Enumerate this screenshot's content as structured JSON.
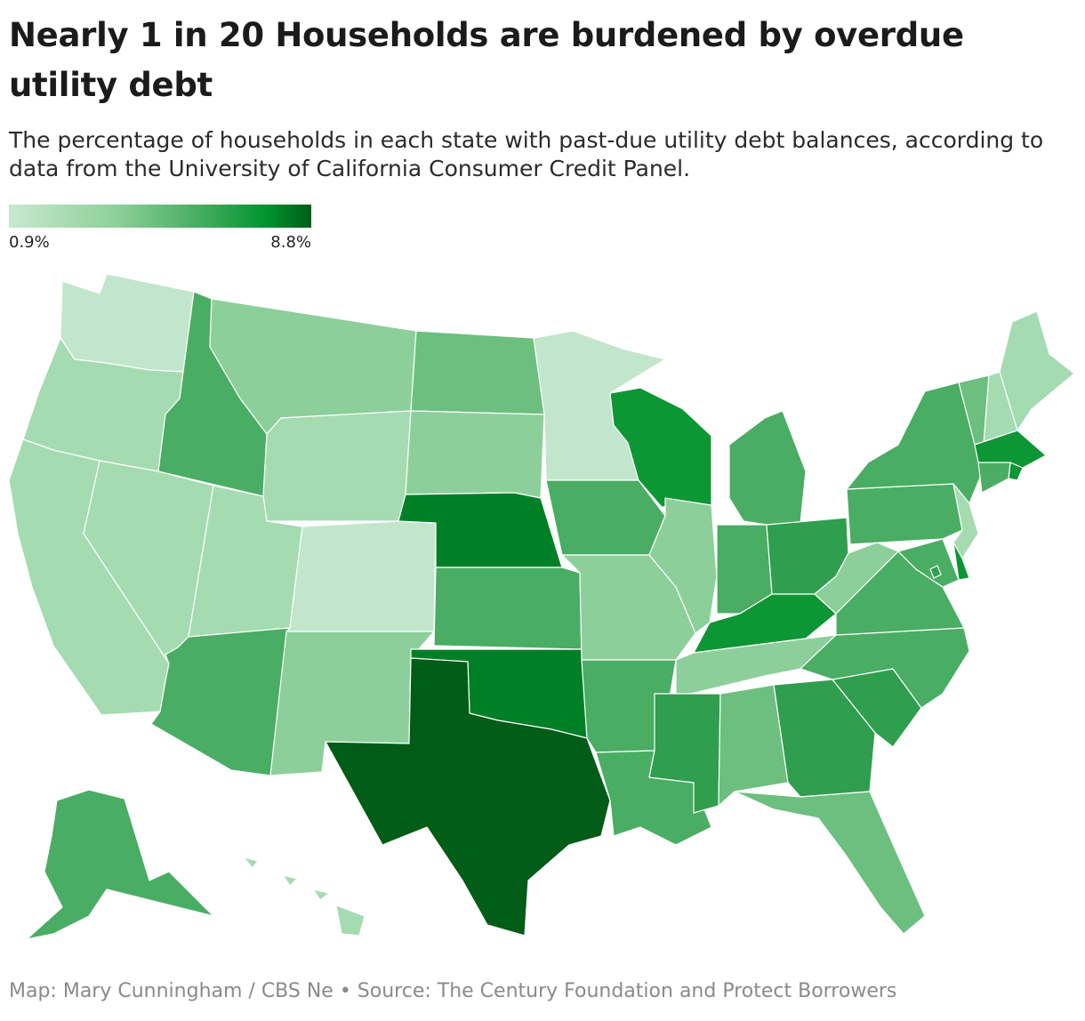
{
  "header": {
    "title": "Nearly 1 in 20 Households are burdened by overdue utility debt",
    "subtitle": "The percentage of households in each state with past-due utility debt balances, according to data from the University of California Consumer Credit Panel."
  },
  "legend": {
    "min_label": "0.9%",
    "max_label": "8.8%",
    "min_value": 0.9,
    "max_value": 8.8,
    "colors": [
      "#c7e9cf",
      "#8fd09a",
      "#41ab5d",
      "#00952f",
      "#005c16"
    ]
  },
  "map_data": {
    "type": "choropleth",
    "region": "United States",
    "color_classes": {
      "lightest": "#c2e6cb",
      "light": "#a5dbb1",
      "light_mid": "#8ccf9a",
      "mid": "#6cbf7f",
      "mid_dark": "#49ad63",
      "dark": "#2f9e4f",
      "darker": "#0d9634",
      "darkest_2": "#008026",
      "darkest": "#005c16"
    },
    "states": {
      "WA": "lightest",
      "OR": "light",
      "CA": "light",
      "NV": "light",
      "ID": "mid_dark",
      "MT": "light_mid",
      "WY": "light",
      "UT": "light",
      "AZ": "mid_dark",
      "CO": "lightest",
      "NM": "light_mid",
      "ND": "mid",
      "SD": "light_mid",
      "NE": "darkest_2",
      "KS": "mid_dark",
      "OK": "darkest_2",
      "TX": "darkest",
      "MN": "lightest",
      "IA": "mid_dark",
      "MO": "light_mid",
      "AR": "mid_dark",
      "LA": "mid_dark",
      "WI": "darker",
      "IL": "light_mid",
      "MI": "mid_dark",
      "IN": "mid_dark",
      "OH": "dark",
      "KY": "darker",
      "TN": "light_mid",
      "MS": "dark",
      "AL": "mid",
      "GA": "dark",
      "FL": "mid",
      "SC": "dark",
      "NC": "mid_dark",
      "VA": "mid_dark",
      "WV": "light_mid",
      "PA": "mid_dark",
      "NY": "mid_dark",
      "VT": "mid",
      "NH": "light",
      "ME": "light",
      "MA": "darker",
      "RI": "darker",
      "CT": "mid_dark",
      "NJ": "light",
      "DE": "darker",
      "MD": "mid_dark",
      "DC": "dark",
      "AK": "mid_dark",
      "HI": "light"
    }
  },
  "footer": {
    "credit": "Map: Mary Cunningham / CBS Ne • Source: The Century Foundation and Protect Borrowers"
  }
}
